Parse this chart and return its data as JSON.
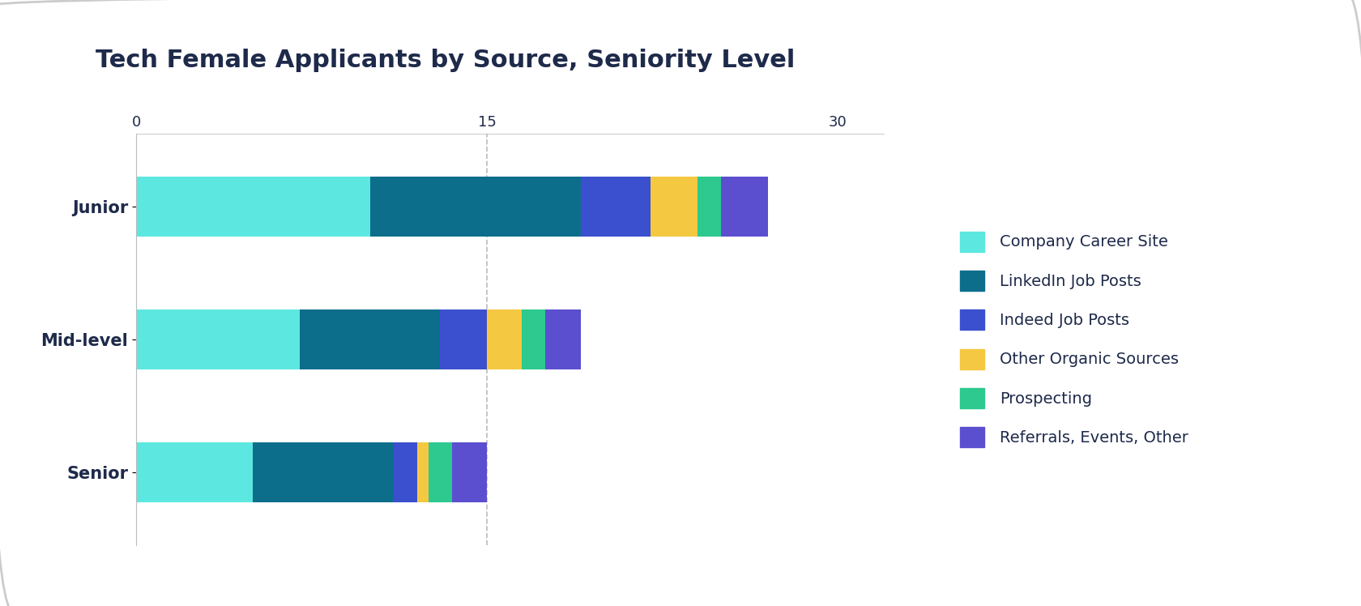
{
  "title": "Tech Female Applicants by Source, Seniority Level",
  "categories": [
    "Junior",
    "Mid-level",
    "Senior"
  ],
  "sources": [
    "Company Career Site",
    "LinkedIn Job Posts",
    "Indeed Job Posts",
    "Other Organic Sources",
    "Prospecting",
    "Referrals, Events, Other"
  ],
  "colors": [
    "#5CE8E0",
    "#0D6E8C",
    "#3B50CE",
    "#F5C842",
    "#2DC98E",
    "#5B4FCF"
  ],
  "values": {
    "Junior": [
      10,
      9,
      3,
      2,
      1,
      2
    ],
    "Mid-level": [
      7,
      6,
      2,
      1.5,
      1,
      1.5
    ],
    "Senior": [
      5,
      6,
      1,
      0.5,
      1,
      1.5
    ]
  },
  "xlim": [
    0,
    32
  ],
  "xticks": [
    0,
    15,
    30
  ],
  "background_color": "#ffffff",
  "text_color": "#1e2a4a",
  "title_fontsize": 22,
  "label_fontsize": 15,
  "tick_fontsize": 13,
  "legend_fontsize": 14,
  "bar_height": 0.45,
  "fig_bg": "#ffffff"
}
